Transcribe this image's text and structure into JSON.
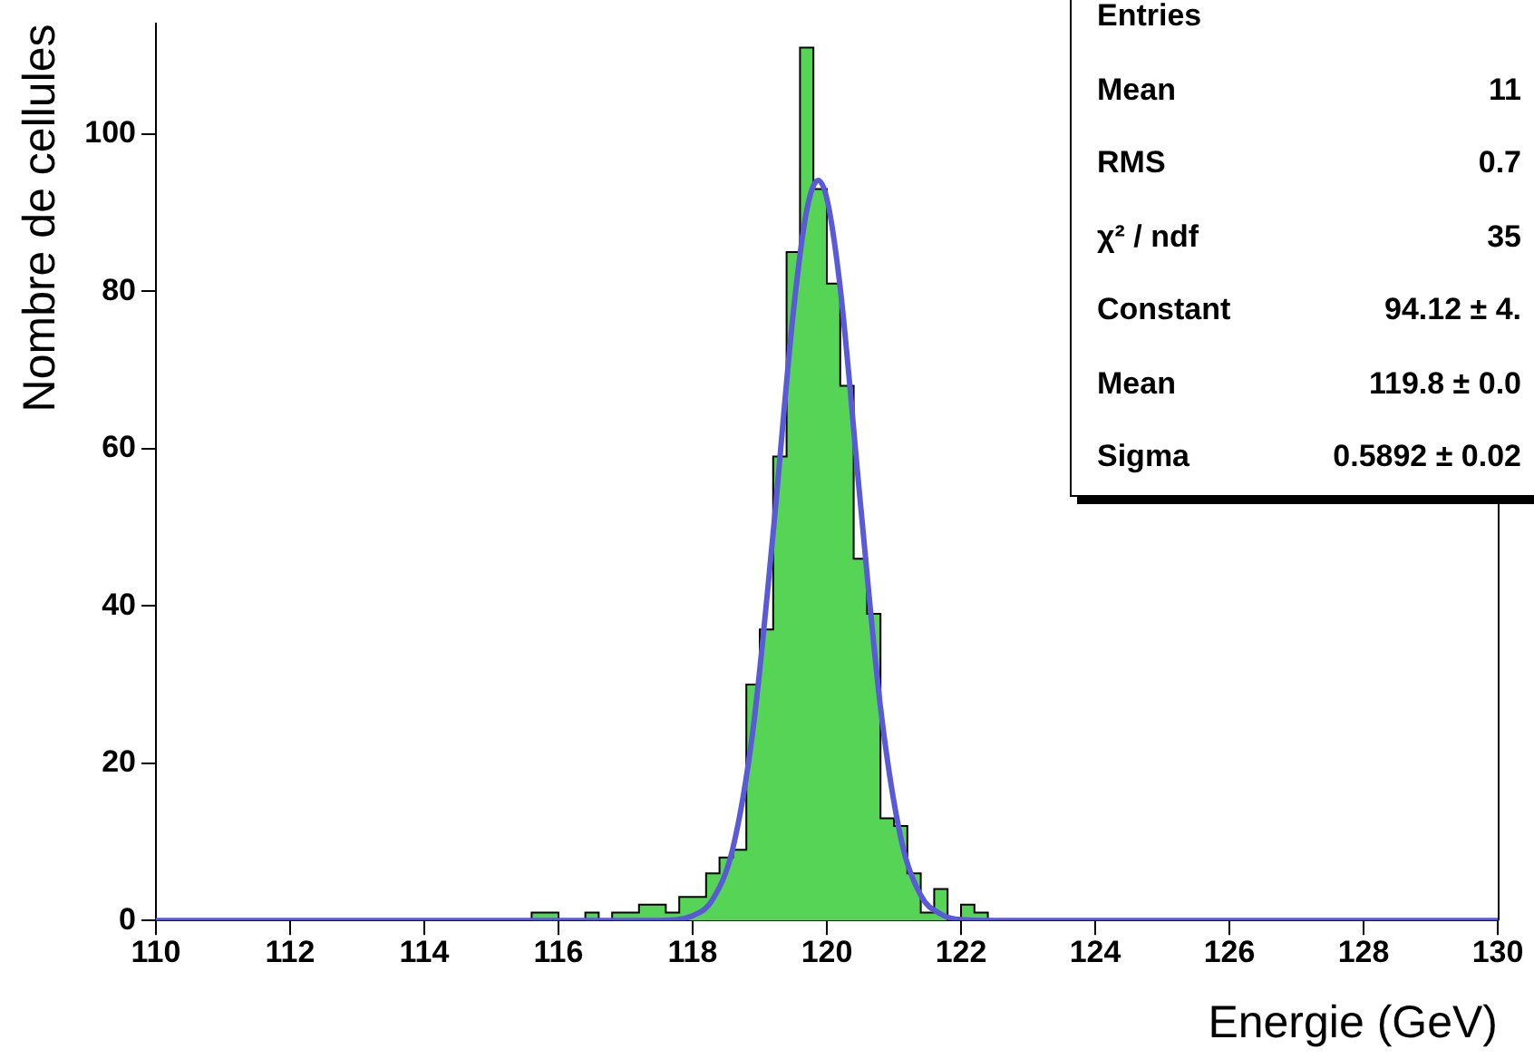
{
  "chart_data": {
    "type": "histogram",
    "xlabel": "Energie (GeV)",
    "ylabel": "Nombre de cellules",
    "bins": [
      110,
      110.2,
      110.4,
      110.6,
      110.8,
      111,
      111.2,
      111.4,
      111.6,
      111.8,
      112,
      112.2,
      112.4,
      112.6,
      112.8,
      113,
      113.2,
      113.4,
      113.6,
      113.8,
      114,
      114.2,
      114.4,
      114.6,
      114.8,
      115,
      115.2,
      115.4,
      115.6,
      115.8,
      116,
      116.2,
      116.4,
      116.6,
      116.8,
      117,
      117.2,
      117.4,
      117.6,
      117.8,
      118,
      118.2,
      118.4,
      118.6,
      118.8,
      119,
      119.2,
      119.4,
      119.6,
      119.8,
      120,
      120.2,
      120.4,
      120.6,
      120.8,
      121,
      121.2,
      121.4,
      121.6,
      121.8,
      122,
      122.2,
      122.4,
      122.6,
      122.8,
      123,
      123.2,
      123.4,
      123.6,
      123.8,
      124,
      124.2,
      124.4,
      124.6,
      124.8,
      125,
      125.2,
      125.4,
      125.6,
      125.8,
      126,
      126.2,
      126.4,
      126.6,
      126.8,
      127,
      127.2,
      127.4,
      127.6,
      127.8,
      128,
      128.2,
      128.4,
      128.6,
      128.8,
      129,
      129.2,
      129.4,
      129.6,
      129.8,
      130
    ],
    "values": [
      0,
      0,
      0,
      0,
      0,
      0,
      0,
      0,
      0,
      0,
      0,
      0,
      0,
      0,
      0,
      0,
      0,
      0,
      0,
      0,
      0,
      0,
      0,
      0,
      0,
      0,
      0,
      0,
      1,
      1,
      0,
      0,
      1,
      0,
      1,
      1,
      2,
      2,
      1,
      3,
      3,
      6,
      8,
      9,
      30,
      37,
      59,
      85,
      111,
      93,
      81,
      68,
      46,
      39,
      13,
      12,
      6,
      1,
      4,
      0,
      2,
      1,
      0,
      0,
      0,
      0,
      0,
      0,
      0,
      0,
      0,
      0,
      0,
      0,
      0,
      0,
      0,
      0,
      0,
      0,
      0,
      0,
      0,
      0,
      0,
      0,
      0,
      0,
      0,
      0,
      0,
      0,
      0,
      0,
      0,
      0,
      0,
      0,
      0,
      0
    ],
    "color": "#55d455",
    "series": [
      {
        "type": "line",
        "color": "#5a5ad8",
        "x": [
          110,
          117.5,
          118,
          118.3,
          118.6,
          118.9,
          119.2,
          119.5,
          119.7,
          119.87,
          120,
          120.2,
          120.5,
          120.8,
          121.1,
          121.4,
          121.7,
          122,
          122.5,
          130
        ],
        "values": [
          0,
          0,
          0.6,
          2.7,
          9.2,
          24.3,
          49.3,
          77.3,
          90.3,
          94.1,
          91.8,
          80.4,
          53.1,
          27.1,
          10.6,
          3.2,
          0.8,
          0.1,
          0,
          0
        ]
      }
    ],
    "xlim": [
      110,
      130
    ],
    "xticks": [
      110,
      112,
      114,
      116,
      118,
      120,
      122,
      124,
      126,
      128,
      130
    ],
    "ylim": [
      0,
      114
    ],
    "yticks": [
      0,
      20,
      40,
      60,
      80,
      100
    ],
    "grid": false,
    "legend": false,
    "marker": "none",
    "annotations": [
      "Entries",
      "Mean",
      "11",
      "RMS",
      "0.7",
      "χ² / ndf",
      "35",
      "Constant",
      "94.12 ± 4.",
      "Mean",
      "119.8 ± 0.0",
      "Sigma",
      "0.5892 ± 0.02"
    ]
  }
}
